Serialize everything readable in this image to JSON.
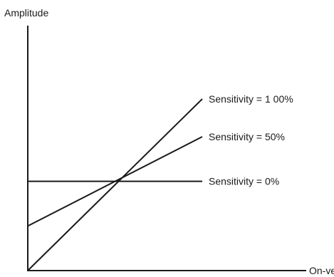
{
  "chart_data": {
    "type": "line",
    "xlabel": "On-velocity",
    "ylabel": "Amplitude",
    "x": [
      0,
      1
    ],
    "series": [
      {
        "name": "Sensitivity = 1 00%",
        "values": [
          0,
          1.0
        ]
      },
      {
        "name": "Sensitivity = 50%",
        "values": [
          0.26,
          0.78
        ]
      },
      {
        "name": "Sensitivity = 0%",
        "values": [
          0.52,
          0.52
        ]
      }
    ],
    "xlim": [
      0,
      1.3
    ],
    "ylim": [
      0,
      1.34
    ],
    "grid": false,
    "legend": "end-of-line labels",
    "colors": {
      "line": "#1a1a1a",
      "background": "#ffffff"
    }
  }
}
